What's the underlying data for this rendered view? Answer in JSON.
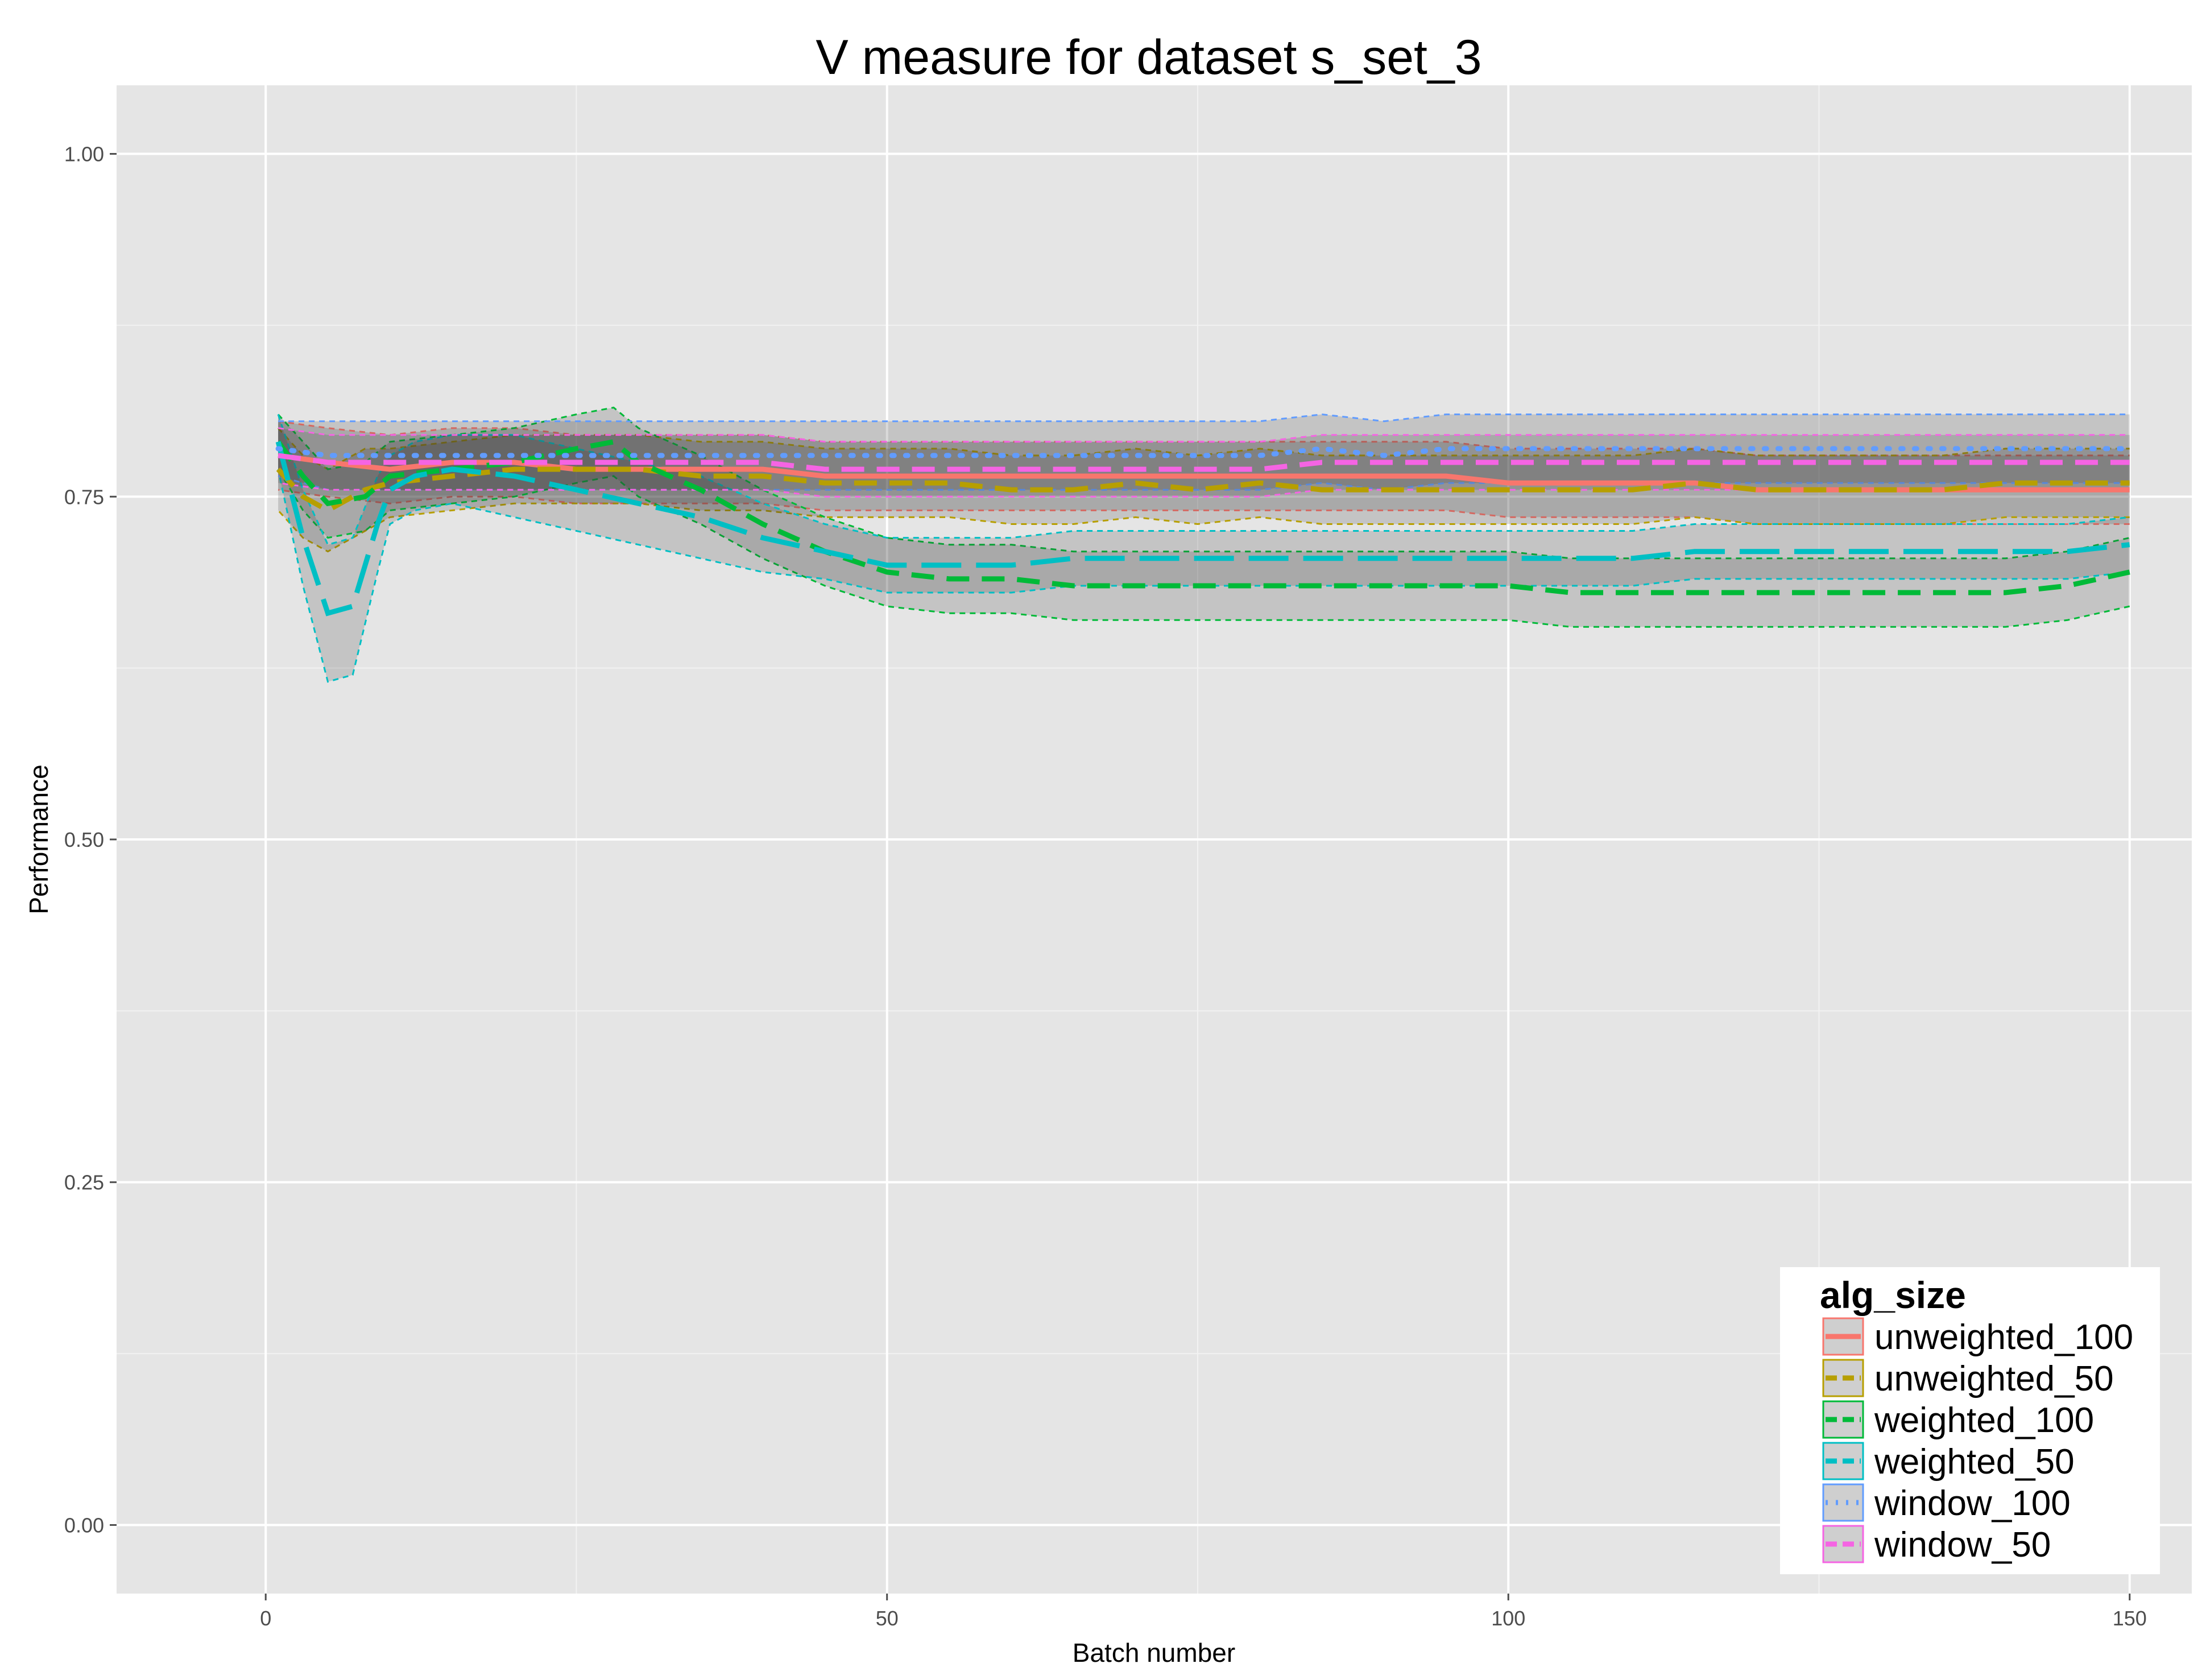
{
  "chart_data": {
    "type": "line",
    "title": "V measure for dataset s_set_3",
    "xlabel": "Batch number",
    "ylabel": "Performance",
    "xlim": [
      -12,
      155
    ],
    "ylim": [
      -0.05,
      1.05
    ],
    "x_ticks": [
      0,
      50,
      100,
      150
    ],
    "x_tick_labels": [
      "0",
      "50",
      "100",
      "150"
    ],
    "y_ticks": [
      0,
      0.25,
      0.5,
      0.75,
      1
    ],
    "y_tick_labels": [
      "0.00",
      "0.25",
      "0.50",
      "0.75",
      "1.00"
    ],
    "grid": true,
    "background": "#e5e5e5",
    "legend": {
      "title": "alg_size",
      "placement": "bottom-right"
    },
    "series": [
      {
        "name": "unweighted_100",
        "color": "#f8766d",
        "linestyle": "solid",
        "points": [
          [
            1,
            0.78
          ],
          [
            5,
            0.775
          ],
          [
            10,
            0.77
          ],
          [
            15,
            0.775
          ],
          [
            20,
            0.775
          ],
          [
            25,
            0.77
          ],
          [
            30,
            0.77
          ],
          [
            35,
            0.77
          ],
          [
            40,
            0.77
          ],
          [
            45,
            0.765
          ],
          [
            50,
            0.765
          ],
          [
            55,
            0.765
          ],
          [
            60,
            0.765
          ],
          [
            65,
            0.765
          ],
          [
            70,
            0.765
          ],
          [
            75,
            0.765
          ],
          [
            80,
            0.765
          ],
          [
            85,
            0.765
          ],
          [
            90,
            0.765
          ],
          [
            95,
            0.765
          ],
          [
            100,
            0.76
          ],
          [
            105,
            0.76
          ],
          [
            110,
            0.76
          ],
          [
            115,
            0.76
          ],
          [
            120,
            0.755
          ],
          [
            125,
            0.755
          ],
          [
            130,
            0.755
          ],
          [
            135,
            0.755
          ],
          [
            140,
            0.755
          ],
          [
            145,
            0.755
          ],
          [
            150,
            0.755
          ]
        ],
        "band": [
          0.025,
          0.025,
          0.025,
          0.025,
          0.025,
          0.025,
          0.025,
          0.025,
          0.025,
          0.025,
          0.025,
          0.025,
          0.025,
          0.025,
          0.025,
          0.025,
          0.025,
          0.025,
          0.025,
          0.025,
          0.025,
          0.025,
          0.025,
          0.025,
          0.025,
          0.025,
          0.025,
          0.025,
          0.025,
          0.025,
          0.025
        ]
      },
      {
        "name": "unweighted_50",
        "color": "#b79f00",
        "linestyle": "dashed",
        "points": [
          [
            1,
            0.77
          ],
          [
            3,
            0.75
          ],
          [
            5,
            0.74
          ],
          [
            8,
            0.755
          ],
          [
            10,
            0.76
          ],
          [
            15,
            0.765
          ],
          [
            20,
            0.77
          ],
          [
            25,
            0.77
          ],
          [
            30,
            0.77
          ],
          [
            35,
            0.765
          ],
          [
            40,
            0.765
          ],
          [
            45,
            0.76
          ],
          [
            50,
            0.76
          ],
          [
            55,
            0.76
          ],
          [
            60,
            0.755
          ],
          [
            65,
            0.755
          ],
          [
            70,
            0.76
          ],
          [
            75,
            0.755
          ],
          [
            80,
            0.76
          ],
          [
            85,
            0.755
          ],
          [
            90,
            0.755
          ],
          [
            95,
            0.755
          ],
          [
            100,
            0.755
          ],
          [
            105,
            0.755
          ],
          [
            110,
            0.755
          ],
          [
            115,
            0.76
          ],
          [
            120,
            0.755
          ],
          [
            125,
            0.755
          ],
          [
            130,
            0.755
          ],
          [
            135,
            0.755
          ],
          [
            140,
            0.76
          ],
          [
            145,
            0.76
          ],
          [
            150,
            0.76
          ]
        ],
        "band": [
          0.03,
          0.03,
          0.03,
          0.03,
          0.025,
          0.025,
          0.025,
          0.025,
          0.025,
          0.025,
          0.025,
          0.025,
          0.025,
          0.025,
          0.025,
          0.025,
          0.025,
          0.025,
          0.025,
          0.025,
          0.025,
          0.025,
          0.025,
          0.025,
          0.025,
          0.025,
          0.025,
          0.025,
          0.025,
          0.025,
          0.025,
          0.025,
          0.025
        ]
      },
      {
        "name": "weighted_100",
        "color": "#00ba38",
        "linestyle": "dashed",
        "points": [
          [
            1,
            0.79
          ],
          [
            3,
            0.765
          ],
          [
            5,
            0.745
          ],
          [
            8,
            0.75
          ],
          [
            10,
            0.765
          ],
          [
            15,
            0.77
          ],
          [
            20,
            0.775
          ],
          [
            25,
            0.785
          ],
          [
            28,
            0.79
          ],
          [
            30,
            0.775
          ],
          [
            35,
            0.755
          ],
          [
            40,
            0.73
          ],
          [
            45,
            0.71
          ],
          [
            50,
            0.695
          ],
          [
            55,
            0.69
          ],
          [
            60,
            0.69
          ],
          [
            65,
            0.685
          ],
          [
            70,
            0.685
          ],
          [
            75,
            0.685
          ],
          [
            80,
            0.685
          ],
          [
            85,
            0.685
          ],
          [
            90,
            0.685
          ],
          [
            95,
            0.685
          ],
          [
            100,
            0.685
          ],
          [
            105,
            0.68
          ],
          [
            110,
            0.68
          ],
          [
            115,
            0.68
          ],
          [
            120,
            0.68
          ],
          [
            125,
            0.68
          ],
          [
            130,
            0.68
          ],
          [
            135,
            0.68
          ],
          [
            140,
            0.68
          ],
          [
            145,
            0.685
          ],
          [
            150,
            0.695
          ]
        ],
        "band": [
          0.02,
          0.025,
          0.025,
          0.025,
          0.025,
          0.025,
          0.025,
          0.025,
          0.025,
          0.025,
          0.025,
          0.025,
          0.025,
          0.025,
          0.025,
          0.025,
          0.025,
          0.025,
          0.025,
          0.025,
          0.025,
          0.025,
          0.025,
          0.025,
          0.025,
          0.025,
          0.025,
          0.025,
          0.025,
          0.025,
          0.025,
          0.025,
          0.025,
          0.025
        ]
      },
      {
        "name": "weighted_50",
        "color": "#00bfc4",
        "linestyle": "longdash",
        "points": [
          [
            1,
            0.79
          ],
          [
            3,
            0.72
          ],
          [
            5,
            0.665
          ],
          [
            7,
            0.67
          ],
          [
            9,
            0.73
          ],
          [
            10,
            0.755
          ],
          [
            12,
            0.765
          ],
          [
            15,
            0.77
          ],
          [
            20,
            0.765
          ],
          [
            25,
            0.755
          ],
          [
            30,
            0.745
          ],
          [
            35,
            0.735
          ],
          [
            40,
            0.72
          ],
          [
            45,
            0.71
          ],
          [
            50,
            0.7
          ],
          [
            55,
            0.7
          ],
          [
            60,
            0.7
          ],
          [
            65,
            0.705
          ],
          [
            70,
            0.705
          ],
          [
            75,
            0.705
          ],
          [
            80,
            0.705
          ],
          [
            85,
            0.705
          ],
          [
            90,
            0.705
          ],
          [
            95,
            0.705
          ],
          [
            100,
            0.705
          ],
          [
            105,
            0.705
          ],
          [
            110,
            0.705
          ],
          [
            115,
            0.71
          ],
          [
            120,
            0.71
          ],
          [
            125,
            0.71
          ],
          [
            130,
            0.71
          ],
          [
            135,
            0.71
          ],
          [
            140,
            0.71
          ],
          [
            145,
            0.71
          ],
          [
            150,
            0.715
          ]
        ],
        "band": [
          0.02,
          0.035,
          0.05,
          0.05,
          0.035,
          0.025,
          0.025,
          0.025,
          0.03,
          0.03,
          0.03,
          0.03,
          0.025,
          0.02,
          0.02,
          0.02,
          0.02,
          0.02,
          0.02,
          0.02,
          0.02,
          0.02,
          0.02,
          0.02,
          0.02,
          0.02,
          0.02,
          0.02,
          0.02,
          0.02,
          0.02,
          0.02,
          0.02,
          0.02,
          0.02
        ]
      },
      {
        "name": "window_100",
        "color": "#619cff",
        "linestyle": "dotted",
        "points": [
          [
            1,
            0.785
          ],
          [
            5,
            0.78
          ],
          [
            10,
            0.78
          ],
          [
            15,
            0.78
          ],
          [
            20,
            0.78
          ],
          [
            25,
            0.78
          ],
          [
            30,
            0.78
          ],
          [
            35,
            0.78
          ],
          [
            40,
            0.78
          ],
          [
            45,
            0.78
          ],
          [
            50,
            0.78
          ],
          [
            55,
            0.78
          ],
          [
            60,
            0.78
          ],
          [
            65,
            0.78
          ],
          [
            70,
            0.78
          ],
          [
            75,
            0.78
          ],
          [
            80,
            0.78
          ],
          [
            85,
            0.785
          ],
          [
            90,
            0.78
          ],
          [
            95,
            0.785
          ],
          [
            100,
            0.785
          ],
          [
            105,
            0.785
          ],
          [
            110,
            0.785
          ],
          [
            115,
            0.785
          ],
          [
            120,
            0.785
          ],
          [
            125,
            0.785
          ],
          [
            130,
            0.785
          ],
          [
            135,
            0.785
          ],
          [
            140,
            0.785
          ],
          [
            145,
            0.785
          ],
          [
            150,
            0.785
          ]
        ],
        "band": [
          0.02,
          0.025,
          0.025,
          0.025,
          0.025,
          0.025,
          0.025,
          0.025,
          0.025,
          0.025,
          0.025,
          0.025,
          0.025,
          0.025,
          0.025,
          0.025,
          0.025,
          0.025,
          0.025,
          0.025,
          0.025,
          0.025,
          0.025,
          0.025,
          0.025,
          0.025,
          0.025,
          0.025,
          0.025,
          0.025,
          0.025
        ]
      },
      {
        "name": "window_50",
        "color": "#f564e3",
        "linestyle": "dashed",
        "points": [
          [
            1,
            0.78
          ],
          [
            5,
            0.775
          ],
          [
            10,
            0.775
          ],
          [
            15,
            0.775
          ],
          [
            20,
            0.775
          ],
          [
            25,
            0.775
          ],
          [
            30,
            0.775
          ],
          [
            35,
            0.775
          ],
          [
            40,
            0.775
          ],
          [
            45,
            0.77
          ],
          [
            50,
            0.77
          ],
          [
            55,
            0.77
          ],
          [
            60,
            0.77
          ],
          [
            65,
            0.77
          ],
          [
            70,
            0.77
          ],
          [
            75,
            0.77
          ],
          [
            80,
            0.77
          ],
          [
            85,
            0.775
          ],
          [
            90,
            0.775
          ],
          [
            95,
            0.775
          ],
          [
            100,
            0.775
          ],
          [
            105,
            0.775
          ],
          [
            110,
            0.775
          ],
          [
            115,
            0.775
          ],
          [
            120,
            0.775
          ],
          [
            125,
            0.775
          ],
          [
            130,
            0.775
          ],
          [
            135,
            0.775
          ],
          [
            140,
            0.775
          ],
          [
            145,
            0.775
          ],
          [
            150,
            0.775
          ]
        ],
        "band": [
          0.02,
          0.02,
          0.02,
          0.02,
          0.02,
          0.02,
          0.02,
          0.02,
          0.02,
          0.02,
          0.02,
          0.02,
          0.02,
          0.02,
          0.02,
          0.02,
          0.02,
          0.02,
          0.02,
          0.02,
          0.02,
          0.02,
          0.02,
          0.02,
          0.02,
          0.02,
          0.02,
          0.02,
          0.02,
          0.02,
          0.02
        ]
      }
    ]
  }
}
